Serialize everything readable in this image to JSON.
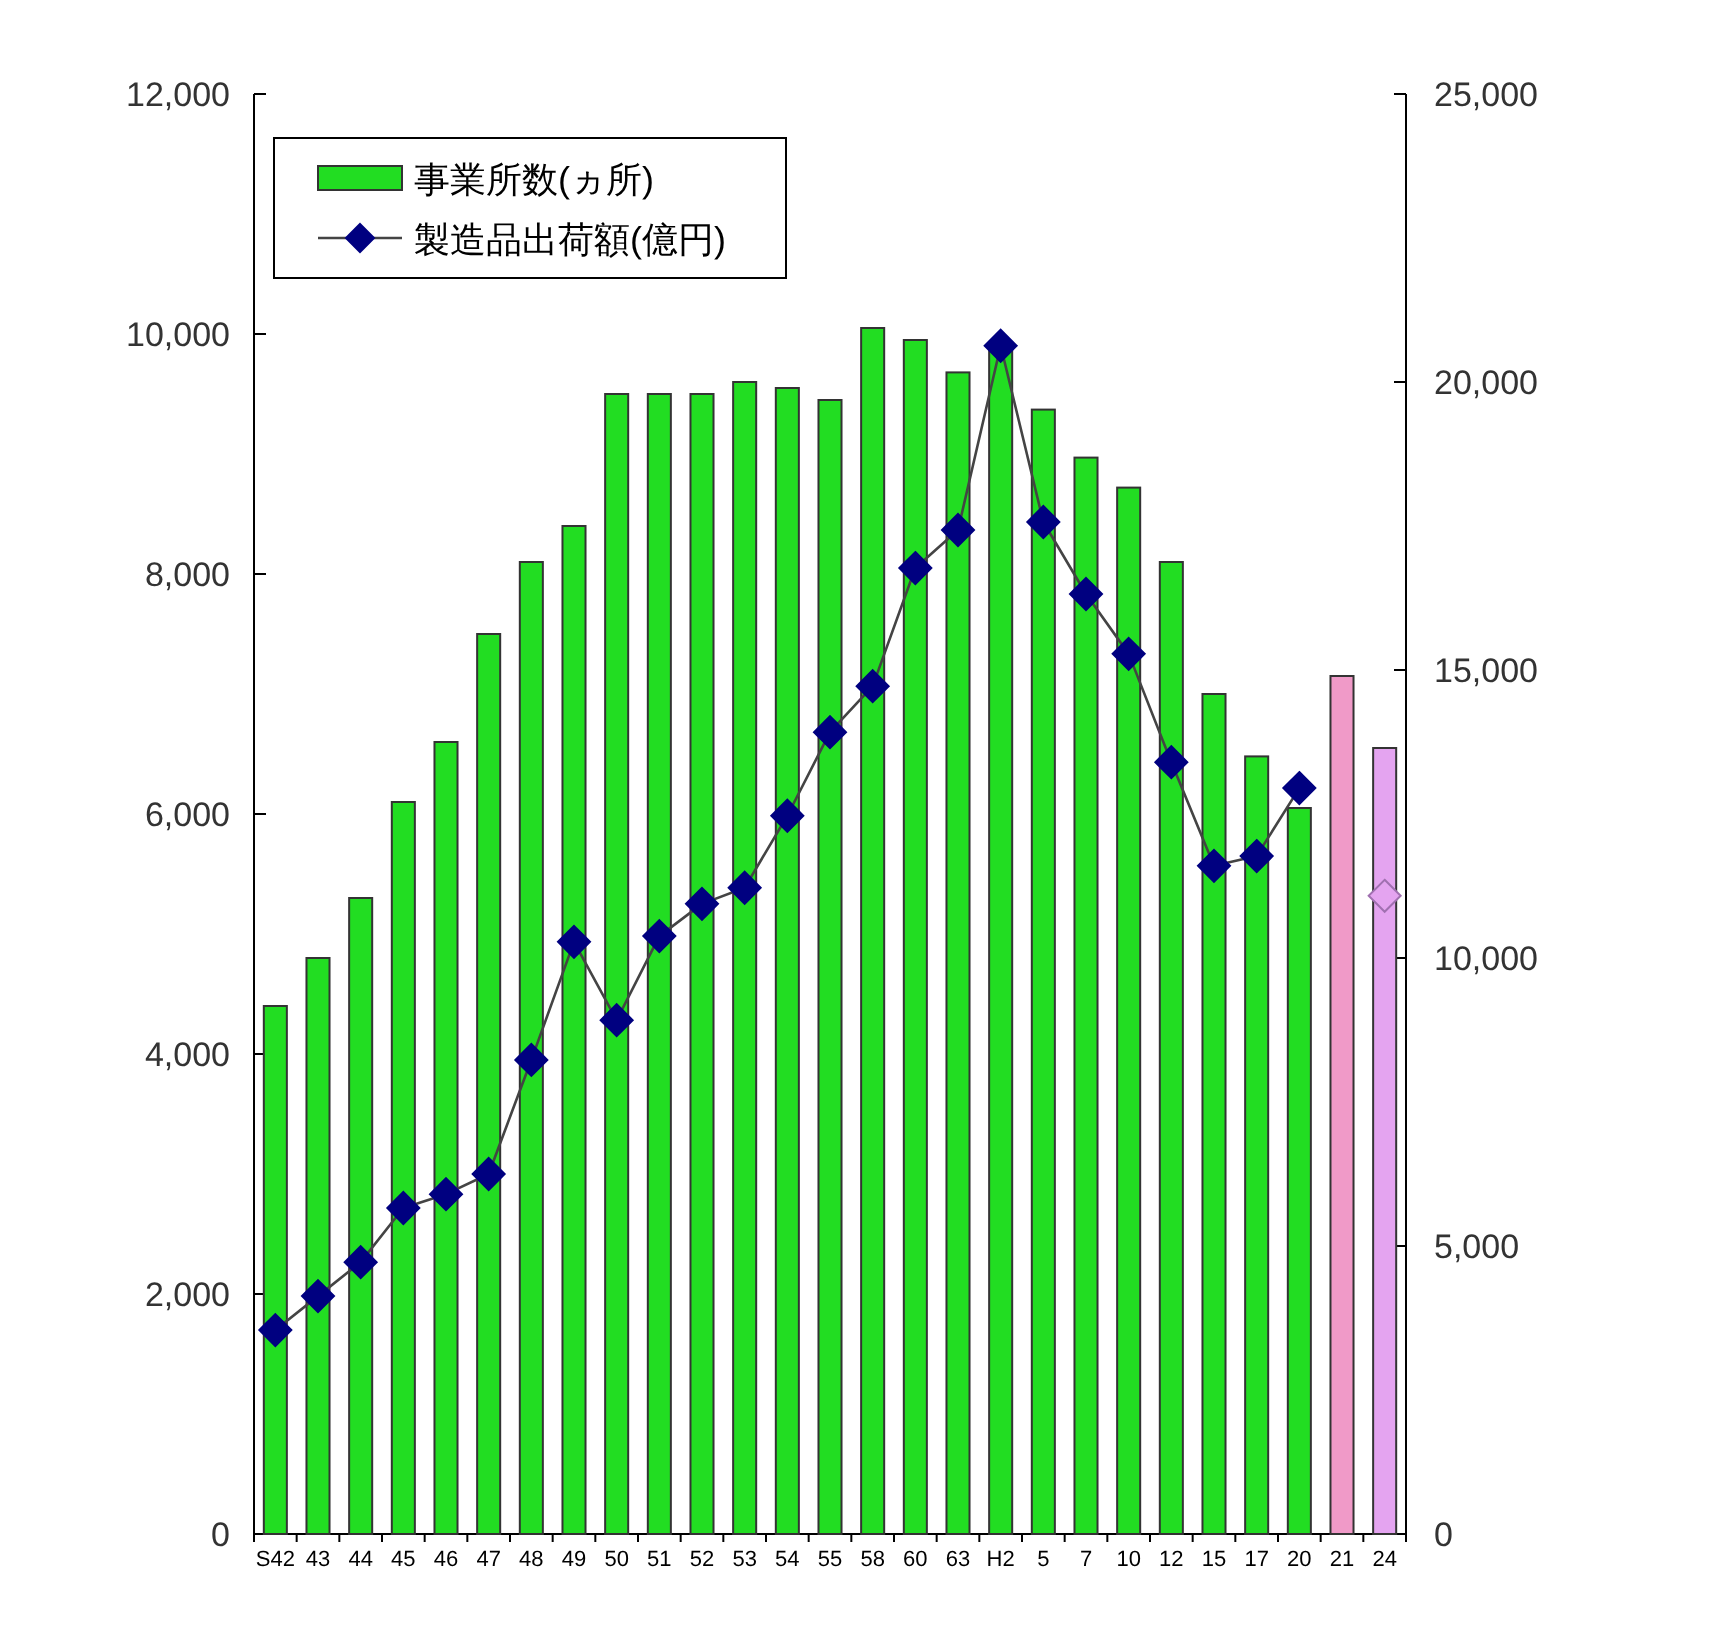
{
  "chart_data": {
    "type": "bar",
    "categories": [
      "S42",
      "43",
      "44",
      "45",
      "46",
      "47",
      "48",
      "49",
      "50",
      "51",
      "52",
      "53",
      "54",
      "55",
      "58",
      "60",
      "63",
      "H2",
      "5",
      "7",
      "10",
      "12",
      "15",
      "17",
      "20",
      "21",
      "24"
    ],
    "series": [
      {
        "name": "事業所数(ヵ所)",
        "color": "#22dd22",
        "colors": [
          "#22dd22",
          "#22dd22",
          "#22dd22",
          "#22dd22",
          "#22dd22",
          "#22dd22",
          "#22dd22",
          "#22dd22",
          "#22dd22",
          "#22dd22",
          "#22dd22",
          "#22dd22",
          "#22dd22",
          "#22dd22",
          "#22dd22",
          "#22dd22",
          "#22dd22",
          "#22dd22",
          "#22dd22",
          "#22dd22",
          "#22dd22",
          "#22dd22",
          "#22dd22",
          "#22dd22",
          "#22dd22",
          "#f09ac8",
          "#e4a4f0"
        ],
        "values": [
          4400,
          4800,
          5300,
          6100,
          6600,
          7500,
          8100,
          8400,
          9500,
          9500,
          9500,
          9600,
          9550,
          9450,
          10050,
          9950,
          9680,
          9900,
          9370,
          8970,
          8720,
          8100,
          7000,
          6480,
          6050,
          7150,
          6550
        ]
      },
      {
        "name": "製造品出荷額(億円)",
        "type": "line",
        "axis": "y2",
        "color": "#000080",
        "marker": "diamond",
        "values": [
          3540,
          4130,
          4720,
          5660,
          5900,
          6250,
          8230,
          10280,
          8920,
          10380,
          10940,
          11220,
          12470,
          13920,
          14720,
          16770,
          17430,
          20630,
          17570,
          16320,
          15280,
          13400,
          11600,
          11770,
          12950,
          null,
          null
        ]
      },
      {
        "type": "scatter",
        "axis": "y2",
        "color": "#e4a4f0",
        "marker": "diamond",
        "values": [
          null,
          null,
          null,
          null,
          null,
          null,
          null,
          null,
          null,
          null,
          null,
          null,
          null,
          null,
          null,
          null,
          null,
          null,
          null,
          null,
          null,
          null,
          null,
          null,
          null,
          null,
          11080
        ]
      }
    ],
    "ylim": [
      0,
      12000
    ],
    "yticks": [
      0,
      {
        "value": 2000,
        "label": "2,000"
      },
      {
        "value": 4000,
        "label": "4,000"
      },
      {
        "value": 6000,
        "label": "6,000"
      },
      {
        "value": 8000,
        "label": "8,000"
      },
      {
        "value": 10000,
        "label": "10,000"
      },
      {
        "value": 12000,
        "label": "12,000"
      }
    ],
    "y2lim": [
      0,
      25000
    ],
    "y2ticks": [
      0,
      {
        "value": 5000,
        "label": "5,000"
      },
      {
        "value": 10000,
        "label": "10,000"
      },
      {
        "value": 15000,
        "label": "15,000"
      },
      {
        "value": 20000,
        "label": "20,000"
      },
      {
        "value": 25000,
        "label": "25,000"
      }
    ],
    "grid": false,
    "legend": "top left"
  }
}
